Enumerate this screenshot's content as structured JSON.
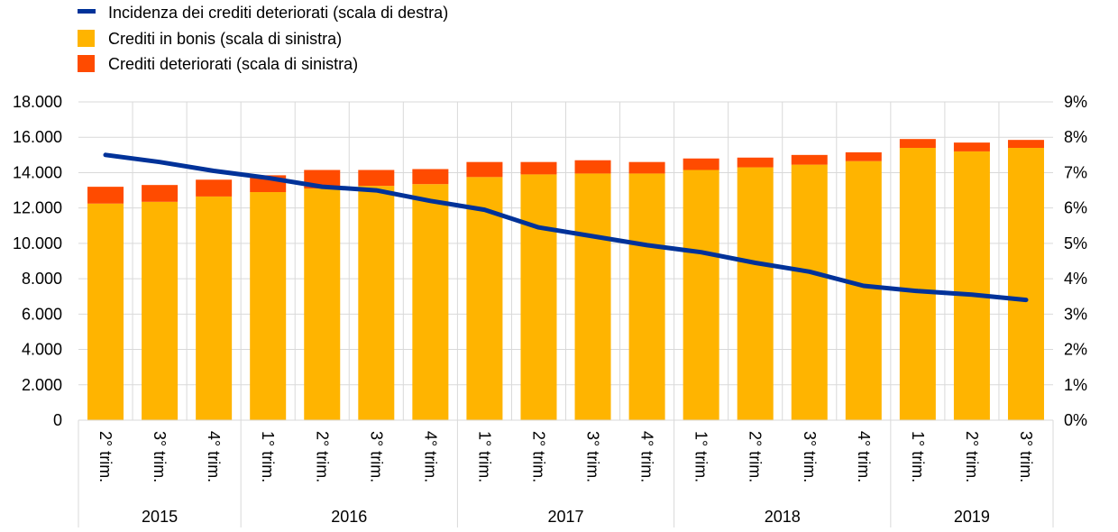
{
  "chart_data": {
    "type": "bar",
    "title": "",
    "xlabel": "",
    "ylabel": "",
    "y2label": "",
    "ylim": [
      0,
      18000
    ],
    "y2lim": [
      0,
      9
    ],
    "y_ticks": [
      "0",
      "2.000",
      "4.000",
      "6.000",
      "8.000",
      "10.000",
      "12.000",
      "14.000",
      "16.000",
      "18.000"
    ],
    "y2_ticks": [
      "0%",
      "1%",
      "2%",
      "3%",
      "4%",
      "5%",
      "6%",
      "7%",
      "8%",
      "9%"
    ],
    "categories": [
      "2° trim.",
      "3° trim.",
      "4° trim.",
      "1° trim.",
      "2° trim.",
      "3° trim.",
      "4° trim.",
      "1° trim.",
      "2° trim.",
      "3° trim.",
      "4° trim.",
      "1° trim.",
      "2° trim.",
      "3° trim.",
      "4° trim.",
      "1° trim.",
      "2° trim.",
      "3° trim."
    ],
    "years": [
      {
        "label": "2015",
        "start": 0,
        "count": 3
      },
      {
        "label": "2016",
        "start": 3,
        "count": 4
      },
      {
        "label": "2017",
        "start": 7,
        "count": 4
      },
      {
        "label": "2018",
        "start": 11,
        "count": 4
      },
      {
        "label": "2019",
        "start": 15,
        "count": 3
      }
    ],
    "series": [
      {
        "name": "Crediti in bonis (scala di sinistra)",
        "kind": "bar",
        "color": "#FFB400",
        "values": [
          12250,
          12350,
          12650,
          12900,
          13100,
          13250,
          13350,
          13750,
          13900,
          13950,
          13950,
          14150,
          14300,
          14450,
          14650,
          15400,
          15200,
          15400
        ]
      },
      {
        "name": "Crediti deteriorati (scala di sinistra)",
        "kind": "bar",
        "color": "#FF4B00",
        "values": [
          950,
          950,
          950,
          950,
          1050,
          900,
          850,
          850,
          700,
          750,
          650,
          650,
          550,
          550,
          500,
          500,
          500,
          450
        ]
      },
      {
        "name": "Incidenza dei crediti deteriorati (scala di destra)",
        "kind": "line",
        "color": "#003299",
        "values": [
          7.5,
          7.3,
          7.05,
          6.85,
          6.6,
          6.5,
          6.2,
          5.95,
          5.45,
          5.2,
          4.95,
          4.75,
          4.45,
          4.2,
          3.8,
          3.65,
          3.55,
          3.4
        ]
      }
    ],
    "legend": [
      {
        "label": "Incidenza dei crediti deteriorati (scala di destra)",
        "color": "#003299",
        "shape": "line"
      },
      {
        "label": "Crediti in bonis (scala di sinistra)",
        "color": "#FFB400",
        "shape": "square"
      },
      {
        "label": "Crediti deteriorati (scala di sinistra)",
        "color": "#FF4B00",
        "shape": "square"
      }
    ],
    "legend_position": "top-left",
    "grid": true
  }
}
